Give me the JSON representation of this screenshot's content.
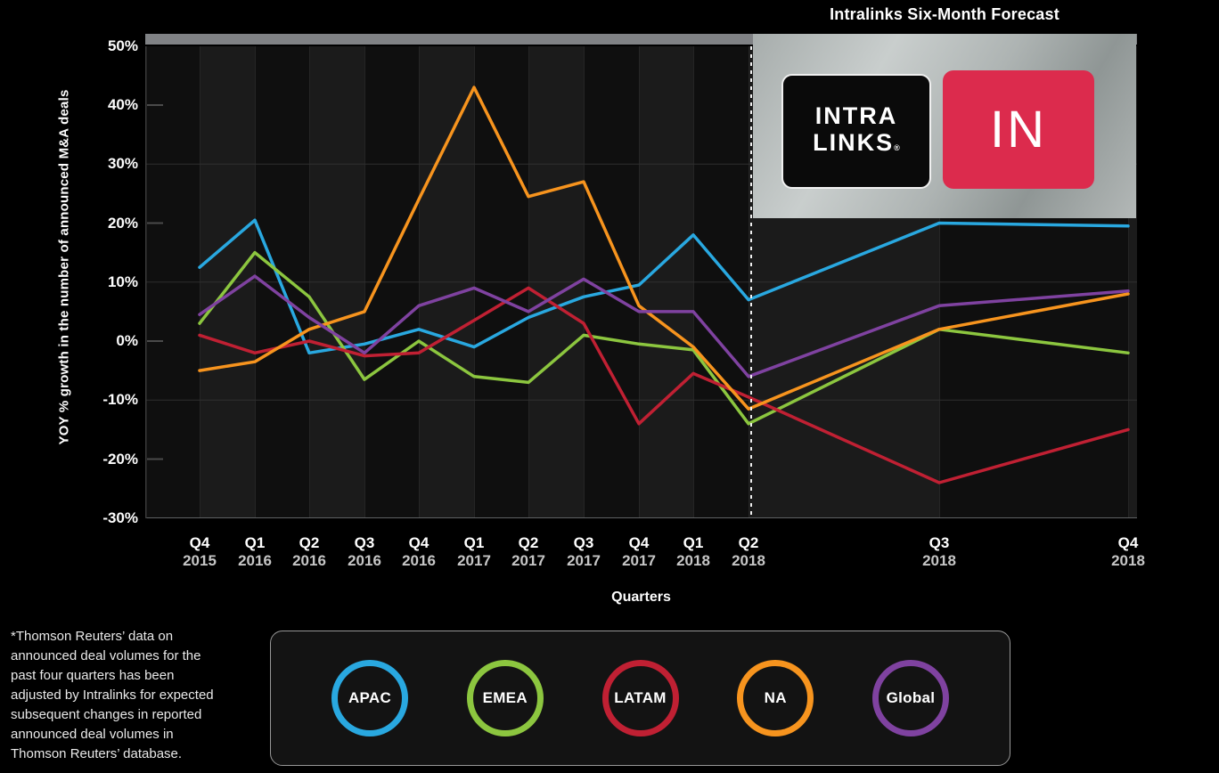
{
  "title": "Intralinks Six-Month Forecast",
  "palette": {
    "page_bg": "#000000",
    "band_dark": "#0f0f0f",
    "band_light": "#1b1b1b",
    "grid_line": "#2f2f2f",
    "vertical_grid": "#252525",
    "tick_dash": "#4a4a4a",
    "bottom_line": "#5f6164",
    "top_bar": "#808285",
    "forecast_divider": "#eeeeee",
    "logo_red": "#DC2B4D"
  },
  "logo": {
    "intra": "INTRA",
    "links": "LINKS",
    "reg": "®",
    "in": "IN"
  },
  "footnote": "*Thomson Reuters’ data on\nannounced deal volumes for the\npast four quarters has been\nadjusted by Intralinks for expected\nsubsequent changes in reported\nannounced deal volumes in\nThomson Reuters’ database.",
  "chart_data": {
    "type": "line",
    "title": "Intralinks Six-Month Forecast",
    "xlabel": "Quarters",
    "ylabel": "YOY % growth in the number of announced M&A deals",
    "ylim": [
      -30,
      50
    ],
    "ytick_step": 10,
    "ytick_suffix": "%",
    "grid": "horizontal gridlines at 30/10/-10/-30; alternating quarter bands; dashed divider before forecast",
    "legend_position": "bottom",
    "forecast_start_index": 10,
    "forecast_note": "values right of dashed line are the six-month forecast (Q3 2018, Q4 2018)",
    "categories": [
      {
        "q": "Q4",
        "year": "2015"
      },
      {
        "q": "Q1",
        "year": "2016"
      },
      {
        "q": "Q2",
        "year": "2016"
      },
      {
        "q": "Q3",
        "year": "2016"
      },
      {
        "q": "Q4",
        "year": "2016"
      },
      {
        "q": "Q1",
        "year": "2017"
      },
      {
        "q": "Q2",
        "year": "2017"
      },
      {
        "q": "Q3",
        "year": "2017"
      },
      {
        "q": "Q4",
        "year": "2017"
      },
      {
        "q": "Q1",
        "year": "2018"
      },
      {
        "q": "Q2",
        "year": "2018"
      },
      {
        "q": "Q3",
        "year": "2018"
      },
      {
        "q": "Q4",
        "year": "2018"
      }
    ],
    "series": [
      {
        "name": "APAC",
        "color": "#29A8E0",
        "values": [
          12.5,
          20.5,
          -2,
          -0.5,
          2,
          -1,
          4,
          7.5,
          9.5,
          18,
          7,
          20,
          19.5
        ]
      },
      {
        "name": "EMEA",
        "color": "#8CC63F",
        "values": [
          3,
          15,
          7.5,
          -6.5,
          0,
          -6,
          -7,
          1,
          -0.5,
          -1.5,
          -14,
          2,
          -2
        ]
      },
      {
        "name": "LATAM",
        "color": "#C02033",
        "values": [
          1,
          -2,
          0,
          -2.5,
          -2,
          3.5,
          9,
          3,
          -14,
          -5.5,
          -9.5,
          -24,
          -15
        ]
      },
      {
        "name": "NA",
        "color": "#F7941E",
        "values": [
          -5,
          -3.5,
          2,
          5,
          24,
          43,
          24.5,
          27,
          6,
          -1,
          -11.5,
          2,
          8
        ]
      },
      {
        "name": "Global",
        "color": "#7F42A0",
        "values": [
          4.5,
          11,
          4,
          -2,
          6,
          9,
          5,
          10.5,
          5,
          5,
          -6,
          6,
          8.5
        ]
      }
    ]
  }
}
